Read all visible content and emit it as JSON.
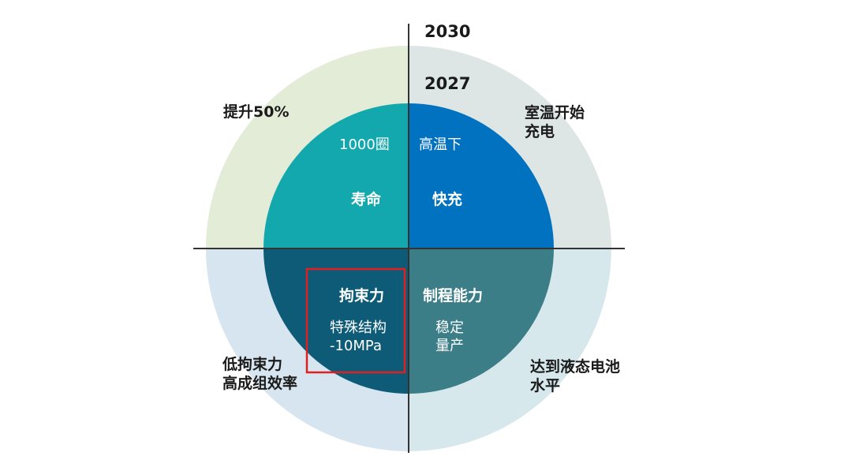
{
  "years": {
    "outer": "2030",
    "inner": "2027"
  },
  "quadrants": {
    "top_left": {
      "outer": [
        "提升50%"
      ],
      "inner_top": "1000圈",
      "inner_main": "寿命",
      "colors": {
        "outer": "#e2ecd6",
        "inner": "#12a8ad"
      }
    },
    "top_right": {
      "outer": [
        "室温开始",
        "充电"
      ],
      "inner_top": "高温下",
      "inner_main": "快充",
      "colors": {
        "outer": "#dde6e4",
        "inner": "#0072bf"
      }
    },
    "bottom_left": {
      "outer": [
        "低拘束力",
        "高成组效率"
      ],
      "inner_main": "拘束力",
      "inner_sub": [
        "特殊结构",
        "-10MPa"
      ],
      "colors": {
        "outer": "#d6e5ef",
        "inner": "#0e5b78"
      }
    },
    "bottom_right": {
      "outer": [
        "达到液态电池",
        "水平"
      ],
      "inner_main": "制程能力",
      "inner_sub": [
        "稳定",
        "量产"
      ],
      "colors": {
        "outer": "#d6e8ec",
        "inner": "#3b7e88"
      }
    }
  },
  "highlight": {
    "target": "bottom_left",
    "color": "#e02020"
  },
  "axis_color": "#333333"
}
